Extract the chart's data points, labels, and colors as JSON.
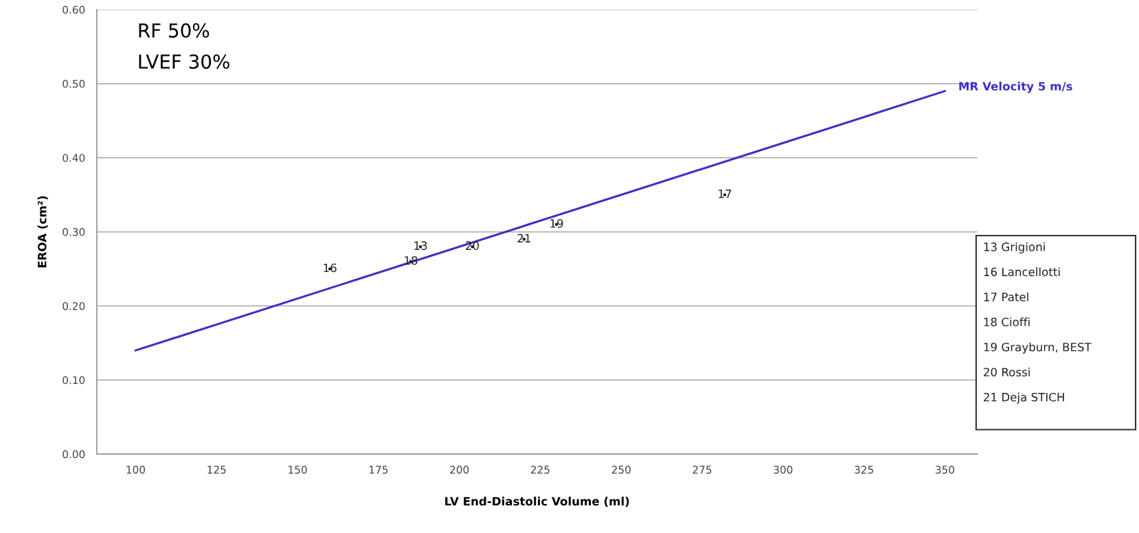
{
  "chart_data": {
    "type": "line",
    "title": "RF 50%",
    "subtitle": "LVEF 30%",
    "xlabel": "LV End-Diastolic Volume (ml)",
    "ylabel": "EROA (cm²)",
    "series": [
      {
        "name": "MR Velocity 5 m/s",
        "color": "#3a30c8",
        "x": [
          100,
          350
        ],
        "values": [
          0.14,
          0.49
        ]
      },
      {
        "type": "scatter",
        "marker": "none",
        "name": "16",
        "color": "#222222",
        "x": [
          160
        ],
        "values": [
          0.25
        ]
      },
      {
        "type": "scatter",
        "marker": "none",
        "name": "13",
        "color": "#222222",
        "x": [
          188
        ],
        "values": [
          0.28
        ]
      },
      {
        "type": "scatter",
        "marker": "none",
        "name": "18",
        "color": "#222222",
        "x": [
          185
        ],
        "values": [
          0.26
        ]
      },
      {
        "type": "scatter",
        "marker": "none",
        "name": "20",
        "color": "#222222",
        "x": [
          204
        ],
        "values": [
          0.28
        ]
      },
      {
        "type": "scatter",
        "marker": "none",
        "name": "21",
        "color": "#222222",
        "x": [
          220
        ],
        "values": [
          0.29
        ]
      },
      {
        "type": "scatter",
        "marker": "none",
        "name": "19",
        "color": "#222222",
        "x": [
          230
        ],
        "values": [
          0.31
        ]
      },
      {
        "type": "scatter",
        "marker": "none",
        "name": "17",
        "color": "#222222",
        "x": [
          282
        ],
        "values": [
          0.35
        ]
      }
    ],
    "xlim": [
      88,
      360
    ],
    "xticks": [
      100,
      125,
      150,
      175,
      200,
      225,
      250,
      275,
      300,
      325,
      350
    ],
    "ylim": [
      0,
      0.6
    ],
    "yticks": [
      {
        "value": 0,
        "label": "0.00"
      },
      {
        "value": 0.1,
        "label": "0.10"
      },
      {
        "value": 0.2,
        "label": "0.20"
      },
      {
        "value": 0.3,
        "label": "0.30"
      },
      {
        "value": 0.4,
        "label": "0.40"
      },
      {
        "value": 0.5,
        "label": "0.50"
      },
      {
        "value": 0.6,
        "label": "0.60"
      }
    ],
    "grid": "y",
    "legend": false,
    "marker": "none",
    "line_style": "solid",
    "annotations": [
      "13 Grigioni",
      "16 Lancellotti",
      "17 Patel",
      "18 Cioffi",
      "19 Grayburn, BEST",
      "20 Rossi",
      "21 Deja STICH"
    ]
  }
}
